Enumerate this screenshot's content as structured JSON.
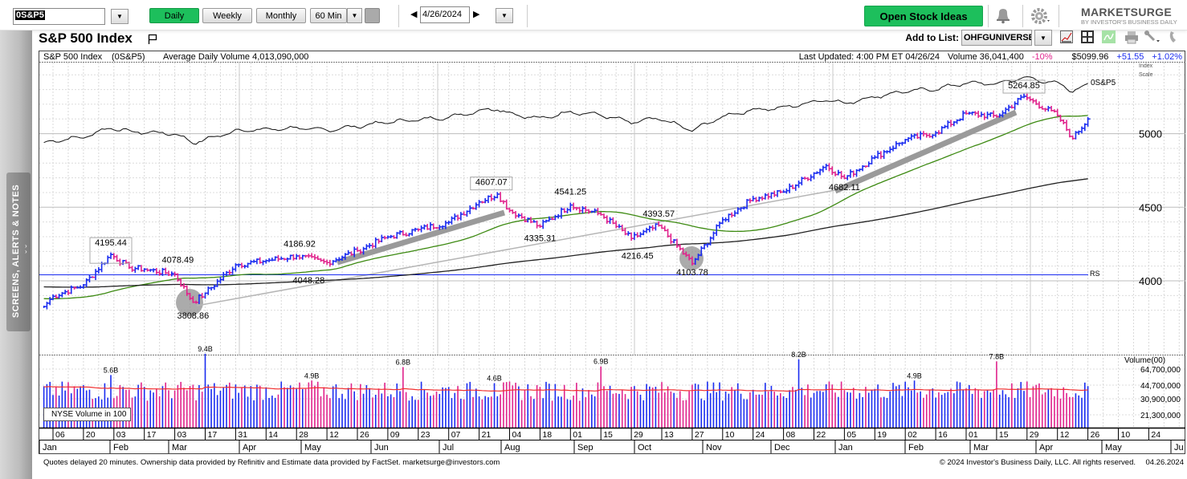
{
  "toolbar": {
    "symbol_value": "0S&P5",
    "periods": [
      {
        "label": "Daily",
        "active": true
      },
      {
        "label": "Weekly",
        "active": false
      },
      {
        "label": "Monthly",
        "active": false
      },
      {
        "label": "60 Min",
        "active": false
      }
    ],
    "date_value": "4/26/2024",
    "open_ideas_label": "Open Stock Ideas",
    "logo_text": "MARKETSURGE",
    "logo_sub": "BY INVESTOR'S BUSINESS DAILY",
    "accent_color": "#1dbf5c"
  },
  "sidebar": {
    "tab_label": "SCREENS, ALERTS & NOTES"
  },
  "title": "S&P 500 Index",
  "add_to_list": {
    "label": "Add to List:",
    "value": "OHFGUNIVERSE"
  },
  "chart_header": {
    "name": "S&P 500 Index",
    "symbol": "(0S&P5)",
    "avg_volume": "Average Daily Volume 4,013,090,000",
    "last_updated": "Last Updated: 4:00 PM ET 04/26/24",
    "volume": "Volume 36,041,400",
    "volume_change": "-10%",
    "price": "$5099.96",
    "change": "+51.55",
    "change_pct": "+1.02%"
  },
  "chart_data": {
    "type": "ohlc-bar",
    "price_axis": {
      "ticks": [
        "5000",
        "4500",
        "4000"
      ],
      "tick_values": [
        5000,
        4500,
        4000
      ],
      "scale_label_1": "Index",
      "scale_label_2": "Scale",
      "range": [
        3750,
        5420
      ]
    },
    "rs_label": "0S&P5",
    "rs_marker": "RS",
    "up_color": "#1a2cf0",
    "down_color": "#e0238c",
    "ma50_color": "#3d8a12",
    "ma200_color": "#222222",
    "approx_closes": [
      [
        "2023-01-03",
        3825
      ],
      [
        "2023-01-06",
        3895
      ],
      [
        "2023-01-20",
        3972
      ],
      [
        "2023-02-02",
        4179
      ],
      [
        "2023-02-10",
        4090
      ],
      [
        "2023-02-17",
        4079
      ],
      [
        "2023-03-03",
        4045
      ],
      [
        "2023-03-13",
        3855
      ],
      [
        "2023-03-17",
        3916
      ],
      [
        "2023-03-31",
        4109
      ],
      [
        "2023-04-14",
        4137
      ],
      [
        "2023-04-28",
        4169
      ],
      [
        "2023-05-12",
        4124
      ],
      [
        "2023-05-26",
        4205
      ],
      [
        "2023-06-09",
        4298
      ],
      [
        "2023-06-23",
        4348
      ],
      [
        "2023-07-07",
        4398
      ],
      [
        "2023-07-21",
        4536
      ],
      [
        "2023-07-31",
        4589
      ],
      [
        "2023-08-04",
        4478
      ],
      [
        "2023-08-18",
        4370
      ],
      [
        "2023-09-01",
        4515
      ],
      [
        "2023-09-15",
        4450
      ],
      [
        "2023-09-29",
        4288
      ],
      [
        "2023-10-12",
        4376
      ],
      [
        "2023-10-27",
        4117
      ],
      [
        "2023-11-10",
        4415
      ],
      [
        "2023-11-24",
        4559
      ],
      [
        "2023-12-08",
        4604
      ],
      [
        "2023-12-28",
        4783
      ],
      [
        "2024-01-05",
        4697
      ],
      [
        "2024-01-19",
        4840
      ],
      [
        "2024-02-02",
        4959
      ],
      [
        "2024-02-16",
        5006
      ],
      [
        "2024-03-01",
        5137
      ],
      [
        "2024-03-15",
        5117
      ],
      [
        "2024-03-28",
        5254
      ],
      [
        "2024-04-12",
        5123
      ],
      [
        "2024-04-19",
        4967
      ],
      [
        "2024-04-26",
        5100
      ]
    ],
    "annotations": [
      {
        "text": "4195.44",
        "date": "2023-02-02",
        "price": 4195.44,
        "place": "above",
        "boxed": true
      },
      {
        "text": "4078.49",
        "date": "2023-03-06",
        "price": 4078.49,
        "place": "above"
      },
      {
        "text": "3808.86",
        "date": "2023-03-13",
        "price": 3808.86,
        "place": "below"
      },
      {
        "text": "4186.92",
        "date": "2023-05-01",
        "price": 4186.92,
        "place": "above"
      },
      {
        "text": "4048.28",
        "date": "2023-05-04",
        "price": 4048.28,
        "place": "below"
      },
      {
        "text": "4607.07",
        "date": "2023-07-27",
        "price": 4607.07,
        "place": "above",
        "boxed": true
      },
      {
        "text": "4541.25",
        "date": "2023-09-01",
        "price": 4541.25,
        "place": "above"
      },
      {
        "text": "4335.31",
        "date": "2023-08-18",
        "price": 4335.31,
        "place": "below"
      },
      {
        "text": "4393.57",
        "date": "2023-10-12",
        "price": 4393.57,
        "place": "above"
      },
      {
        "text": "4216.45",
        "date": "2023-10-03",
        "price": 4216.45,
        "place": "below"
      },
      {
        "text": "4103.78",
        "date": "2023-10-27",
        "price": 4103.78,
        "place": "below"
      },
      {
        "text": "4682.11",
        "date": "2024-01-05",
        "price": 4682.11,
        "place": "below"
      },
      {
        "text": "5264.85",
        "date": "2024-03-28",
        "price": 5264.85,
        "place": "above",
        "boxed": true
      }
    ],
    "volume_axis": {
      "title": "Volume(00)",
      "ticks": [
        "64,700,000",
        "44,700,000",
        "30,900,000",
        "21,300,000"
      ],
      "tick_values_millions": [
        64.7,
        44.7,
        30.9,
        21.3
      ]
    },
    "volume_legend": "NYSE Volume in 100",
    "volume_labels": [
      {
        "text": "5.6B",
        "date": "2023-02-02"
      },
      {
        "text": "9.4B",
        "date": "2023-03-17"
      },
      {
        "text": "4.9B",
        "date": "2023-05-05"
      },
      {
        "text": "6.8B",
        "date": "2023-06-16"
      },
      {
        "text": "4.6B",
        "date": "2023-07-28"
      },
      {
        "text": "6.9B",
        "date": "2023-09-15"
      },
      {
        "text": "8.2B",
        "date": "2023-12-15"
      },
      {
        "text": "4.9B",
        "date": "2024-02-07"
      },
      {
        "text": "7.8B",
        "date": "2024-03-15"
      }
    ],
    "x_axis": {
      "week_labels": [
        "06",
        "20",
        "03",
        "17",
        "03",
        "17",
        "31",
        "14",
        "28",
        "12",
        "26",
        "09",
        "23",
        "07",
        "21",
        "04",
        "18",
        "01",
        "15",
        "29",
        "13",
        "27",
        "10",
        "24",
        "08",
        "22",
        "05",
        "19",
        "02",
        "16",
        "01",
        "15",
        "29",
        "12",
        "26",
        "10",
        "24"
      ],
      "months": [
        "Jan",
        "Feb",
        "Mar",
        "Apr",
        "May",
        "Jun",
        "Jul",
        "Aug",
        "Sep",
        "Oct",
        "Nov",
        "Dec",
        "Jan",
        "Feb",
        "Mar",
        "Apr",
        "May",
        "Ju"
      ]
    }
  },
  "footer": {
    "left": "Quotes delayed 20 minutes. Ownership data provided by Refinitiv and Estimate data provided by FactSet. marketsurge@investors.com",
    "right": "© 2024 Investor's Business Daily, LLC. All rights reserved.",
    "date": "04.26.2024"
  }
}
